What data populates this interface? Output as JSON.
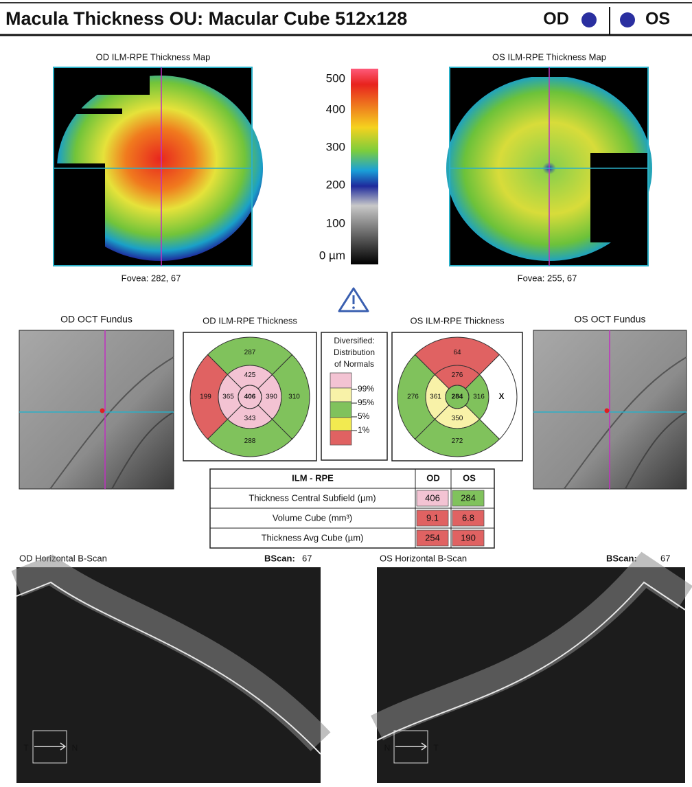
{
  "header": {
    "title": "Macula Thickness OU: Macular Cube 512x128",
    "od": "OD",
    "os": "OS"
  },
  "thickness_maps": {
    "od": {
      "title": "OD ILM-RPE Thickness Map",
      "fovea": "Fovea: 282, 67"
    },
    "os": {
      "title": "OS ILM-RPE Thickness Map",
      "fovea": "Fovea: 255, 67"
    }
  },
  "color_scale": {
    "labels": [
      "500",
      "400",
      "300",
      "200",
      "100",
      "0 µm"
    ]
  },
  "fundus": {
    "od": {
      "title": "OD OCT Fundus"
    },
    "os": {
      "title": "OS OCT Fundus"
    }
  },
  "grids": {
    "od": {
      "title": "OD ILM-RPE Thickness",
      "sectors": {
        "outer_top": 287,
        "inner_top": 425,
        "outer_left": 199,
        "inner_left": 365,
        "center": 406,
        "inner_right": 390,
        "outer_right": 310,
        "inner_bottom": 343,
        "outer_bottom": 288
      }
    },
    "os": {
      "title": "OS ILM-RPE Thickness",
      "sectors": {
        "outer_top": 64,
        "inner_top": 276,
        "outer_left": 276,
        "inner_left": 361,
        "center": 284,
        "inner_right": 316,
        "outer_right": "X",
        "inner_bottom": 350,
        "outer_bottom": 272
      }
    }
  },
  "legend": {
    "title": [
      "Diversified:",
      "Distribution",
      "of Normals"
    ],
    "levels": [
      "99%",
      "95%",
      "5%",
      "1%"
    ]
  },
  "table": {
    "header": [
      "ILM - RPE",
      "OD",
      "OS"
    ],
    "rows": [
      [
        "Thickness Central Subfield (µm)",
        406,
        284
      ],
      [
        "Volume Cube (mm³)",
        9.1,
        6.8
      ],
      [
        "Thickness Avg Cube (µm)",
        254,
        190
      ]
    ]
  },
  "bscans": {
    "od": {
      "title": "OD Horizontal B-Scan",
      "bscan_label": "BScan:",
      "bscan": 67,
      "left": "T",
      "right": "N"
    },
    "os": {
      "title": "OS Horizontal B-Scan",
      "bscan_label": "BScan:",
      "bscan": 67,
      "left": "N",
      "right": "T"
    }
  }
}
